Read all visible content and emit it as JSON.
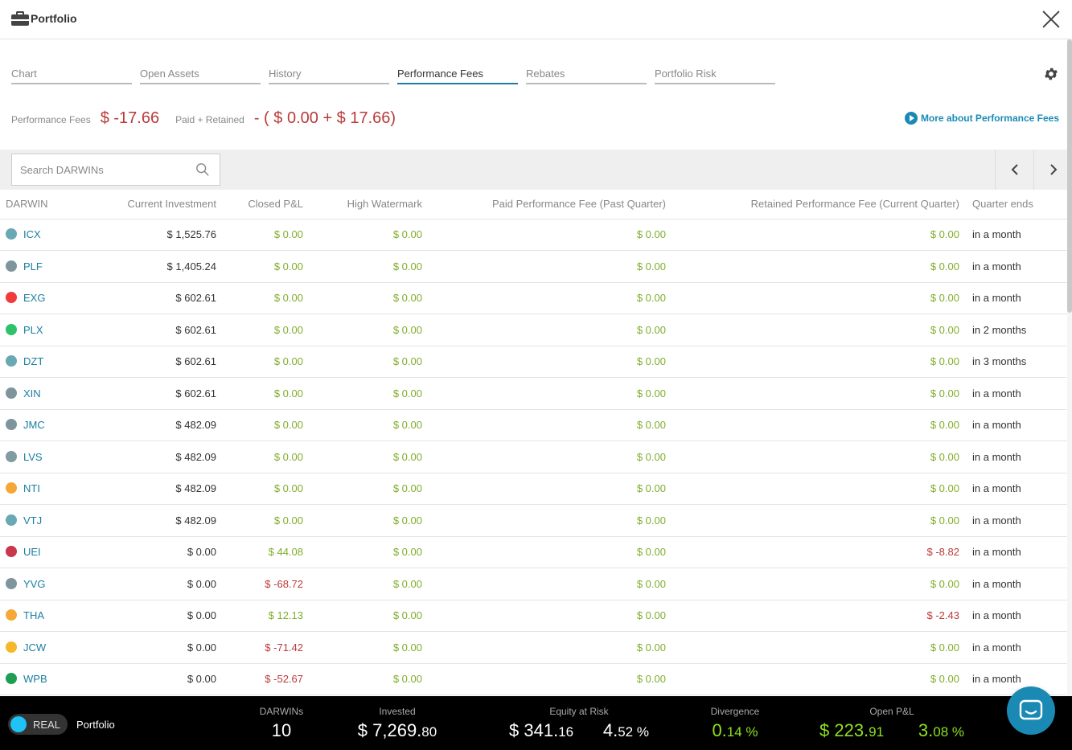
{
  "header": {
    "title": "Portfolio"
  },
  "tabs": [
    {
      "label": "Chart",
      "active": false
    },
    {
      "label": "Open Assets",
      "active": false
    },
    {
      "label": "History",
      "active": false
    },
    {
      "label": "Performance Fees",
      "active": true
    },
    {
      "label": "Rebates",
      "active": false
    },
    {
      "label": "Portfolio Risk",
      "active": false
    }
  ],
  "summary": {
    "fees_label": "Performance Fees",
    "fees_value": "$ -17.66",
    "paid_label": "Paid + Retained",
    "paid_value": "- ( $ 0.00 + $ 17.66)",
    "more_link": "More about Performance Fees"
  },
  "search": {
    "placeholder": "Search DARWINs"
  },
  "table": {
    "columns": [
      "DARWIN",
      "Current Investment",
      "Closed P&L",
      "High Watermark",
      "Paid Performance Fee (Past Quarter)",
      "Retained Performance Fee (Current Quarter)",
      "Quarter ends"
    ],
    "rows": [
      {
        "color": "#6aa8b4",
        "name": "ICX",
        "investment": "$ 1,525.76",
        "closed": "$ 0.00",
        "closed_neg": false,
        "hwm": "$ 0.00",
        "paid": "$ 0.00",
        "retained": "$ 0.00",
        "retained_neg": false,
        "quarter": "in a month"
      },
      {
        "color": "#7f959c",
        "name": "PLF",
        "investment": "$ 1,405.24",
        "closed": "$ 0.00",
        "closed_neg": false,
        "hwm": "$ 0.00",
        "paid": "$ 0.00",
        "retained": "$ 0.00",
        "retained_neg": false,
        "quarter": "in a month"
      },
      {
        "color": "#ef3b3b",
        "name": "EXG",
        "investment": "$ 602.61",
        "closed": "$ 0.00",
        "closed_neg": false,
        "hwm": "$ 0.00",
        "paid": "$ 0.00",
        "retained": "$ 0.00",
        "retained_neg": false,
        "quarter": "in a month"
      },
      {
        "color": "#2ec26a",
        "name": "PLX",
        "investment": "$ 602.61",
        "closed": "$ 0.00",
        "closed_neg": false,
        "hwm": "$ 0.00",
        "paid": "$ 0.00",
        "retained": "$ 0.00",
        "retained_neg": false,
        "quarter": "in 2 months"
      },
      {
        "color": "#6aa8b4",
        "name": "DZT",
        "investment": "$ 602.61",
        "closed": "$ 0.00",
        "closed_neg": false,
        "hwm": "$ 0.00",
        "paid": "$ 0.00",
        "retained": "$ 0.00",
        "retained_neg": false,
        "quarter": "in 3 months"
      },
      {
        "color": "#7f959c",
        "name": "XIN",
        "investment": "$ 602.61",
        "closed": "$ 0.00",
        "closed_neg": false,
        "hwm": "$ 0.00",
        "paid": "$ 0.00",
        "retained": "$ 0.00",
        "retained_neg": false,
        "quarter": "in a month"
      },
      {
        "color": "#7f959c",
        "name": "JMC",
        "investment": "$ 482.09",
        "closed": "$ 0.00",
        "closed_neg": false,
        "hwm": "$ 0.00",
        "paid": "$ 0.00",
        "retained": "$ 0.00",
        "retained_neg": false,
        "quarter": "in a month"
      },
      {
        "color": "#7f9ca3",
        "name": "LVS",
        "investment": "$ 482.09",
        "closed": "$ 0.00",
        "closed_neg": false,
        "hwm": "$ 0.00",
        "paid": "$ 0.00",
        "retained": "$ 0.00",
        "retained_neg": false,
        "quarter": "in a month"
      },
      {
        "color": "#f5a838",
        "name": "NTI",
        "investment": "$ 482.09",
        "closed": "$ 0.00",
        "closed_neg": false,
        "hwm": "$ 0.00",
        "paid": "$ 0.00",
        "retained": "$ 0.00",
        "retained_neg": false,
        "quarter": "in a month"
      },
      {
        "color": "#6aa8b4",
        "name": "VTJ",
        "investment": "$ 482.09",
        "closed": "$ 0.00",
        "closed_neg": false,
        "hwm": "$ 0.00",
        "paid": "$ 0.00",
        "retained": "$ 0.00",
        "retained_neg": false,
        "quarter": "in a month"
      },
      {
        "color": "#c8374a",
        "name": "UEI",
        "investment": "$ 0.00",
        "closed": "$ 44.08",
        "closed_neg": false,
        "hwm": "$ 0.00",
        "paid": "$ 0.00",
        "retained": "$ -8.82",
        "retained_neg": true,
        "quarter": "in a month"
      },
      {
        "color": "#7f959c",
        "name": "YVG",
        "investment": "$ 0.00",
        "closed": "$ -68.72",
        "closed_neg": true,
        "hwm": "$ 0.00",
        "paid": "$ 0.00",
        "retained": "$ 0.00",
        "retained_neg": false,
        "quarter": "in a month"
      },
      {
        "color": "#f5a838",
        "name": "THA",
        "investment": "$ 0.00",
        "closed": "$ 12.13",
        "closed_neg": false,
        "hwm": "$ 0.00",
        "paid": "$ 0.00",
        "retained": "$ -2.43",
        "retained_neg": true,
        "quarter": "in a month"
      },
      {
        "color": "#f5b82a",
        "name": "JCW",
        "investment": "$ 0.00",
        "closed": "$ -71.42",
        "closed_neg": true,
        "hwm": "$ 0.00",
        "paid": "$ 0.00",
        "retained": "$ 0.00",
        "retained_neg": false,
        "quarter": "in a month"
      },
      {
        "color": "#1e9e52",
        "name": "WPB",
        "investment": "$ 0.00",
        "closed": "$ -52.67",
        "closed_neg": true,
        "hwm": "$ 0.00",
        "paid": "$ 0.00",
        "retained": "$ 0.00",
        "retained_neg": false,
        "quarter": "in a month"
      }
    ]
  },
  "bottombar": {
    "mode": "REAL",
    "portfolio_label": "Portfolio",
    "darwins_label": "DARWINs",
    "darwins_value": "10",
    "invested_label": "Invested",
    "invested_main": "$ 7,269.",
    "invested_cents": "80",
    "equity_label": "Equity at Risk",
    "equity_main": "$ 341.",
    "equity_cents": "16",
    "equity_pct_main": "4.",
    "equity_pct_rest": "52 %",
    "divergence_label": "Divergence",
    "divergence_main": "0.",
    "divergence_rest": "14 %",
    "openpl_label": "Open P&L",
    "openpl_main": "$ 223.",
    "openpl_cents": "91",
    "openpl_pct_main": "3.",
    "openpl_pct_rest": "08 %"
  },
  "colors": {
    "accent": "#1a7ea0",
    "positive": "#7fad2a",
    "negative": "#b93a3a",
    "bright_green": "#8ee01e"
  }
}
